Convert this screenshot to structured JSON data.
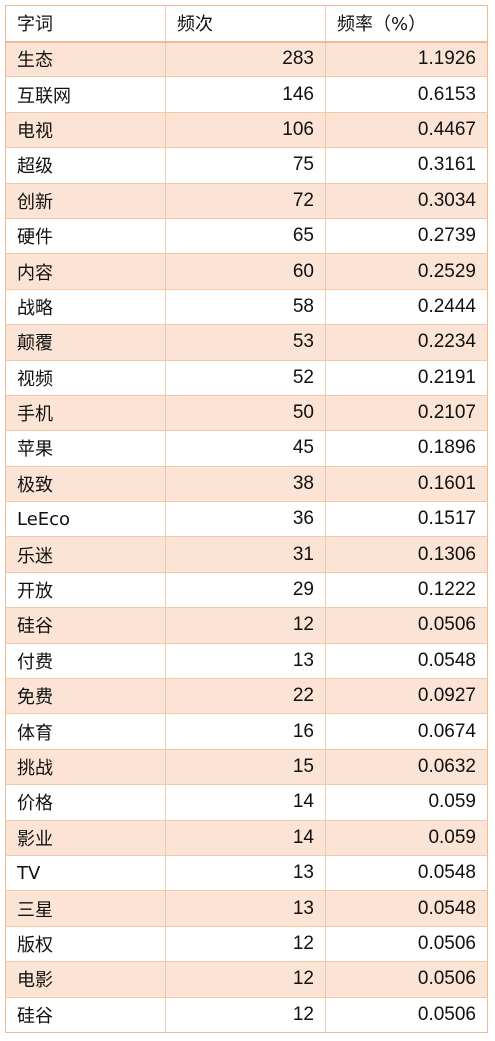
{
  "table": {
    "headers": [
      "字词",
      "频次",
      "频率（%）"
    ],
    "rows": [
      {
        "word": "生态",
        "count": "283",
        "freq": "1.1926"
      },
      {
        "word": "互联网",
        "count": "146",
        "freq": "0.6153"
      },
      {
        "word": "电视",
        "count": "106",
        "freq": "0.4467"
      },
      {
        "word": "超级",
        "count": "75",
        "freq": "0.3161"
      },
      {
        "word": "创新",
        "count": "72",
        "freq": "0.3034"
      },
      {
        "word": "硬件",
        "count": "65",
        "freq": "0.2739"
      },
      {
        "word": "内容",
        "count": "60",
        "freq": "0.2529"
      },
      {
        "word": "战略",
        "count": "58",
        "freq": "0.2444"
      },
      {
        "word": "颠覆",
        "count": "53",
        "freq": "0.2234"
      },
      {
        "word": "视频",
        "count": "52",
        "freq": "0.2191"
      },
      {
        "word": "手机",
        "count": "50",
        "freq": "0.2107"
      },
      {
        "word": "苹果",
        "count": "45",
        "freq": "0.1896"
      },
      {
        "word": "极致",
        "count": "38",
        "freq": "0.1601"
      },
      {
        "word": "LeEco",
        "count": "36",
        "freq": "0.1517"
      },
      {
        "word": "乐迷",
        "count": "31",
        "freq": "0.1306"
      },
      {
        "word": "开放",
        "count": "29",
        "freq": "0.1222"
      },
      {
        "word": "硅谷",
        "count": "12",
        "freq": "0.0506"
      },
      {
        "word": "付费",
        "count": "13",
        "freq": "0.0548"
      },
      {
        "word": "免费",
        "count": "22",
        "freq": "0.0927"
      },
      {
        "word": "体育",
        "count": "16",
        "freq": "0.0674"
      },
      {
        "word": "挑战",
        "count": "15",
        "freq": "0.0632"
      },
      {
        "word": "价格",
        "count": "14",
        "freq": "0.059"
      },
      {
        "word": "影业",
        "count": "14",
        "freq": "0.059"
      },
      {
        "word": "TV",
        "count": "13",
        "freq": "0.0548"
      },
      {
        "word": "三星",
        "count": "13",
        "freq": "0.0548"
      },
      {
        "word": "版权",
        "count": "12",
        "freq": "0.0506"
      },
      {
        "word": "电影",
        "count": "12",
        "freq": "0.0506"
      },
      {
        "word": "硅谷",
        "count": "12",
        "freq": "0.0506"
      }
    ]
  },
  "colors": {
    "border": "#f0b98f",
    "shaded_row": "#fbe4d5"
  }
}
